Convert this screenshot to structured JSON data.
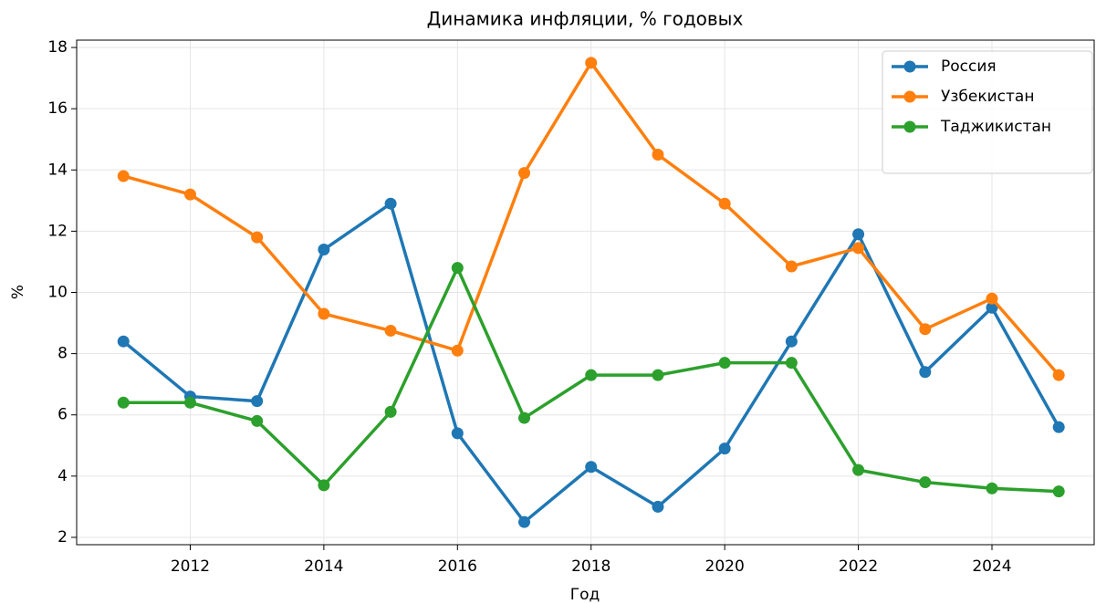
{
  "chart_data": {
    "type": "line",
    "title": "Динамика инфляции, % годовых",
    "xlabel": "Год",
    "ylabel": "%",
    "x": [
      2011,
      2012,
      2013,
      2014,
      2015,
      2016,
      2017,
      2018,
      2019,
      2020,
      2021,
      2022,
      2023,
      2024,
      2025
    ],
    "series": [
      {
        "name": "Россия",
        "color": "#1f77b4",
        "values": [
          8.4,
          6.6,
          6.45,
          11.4,
          12.9,
          5.4,
          2.5,
          4.3,
          3.0,
          4.9,
          8.4,
          11.9,
          7.4,
          9.5,
          5.6
        ]
      },
      {
        "name": "Узбекистан",
        "color": "#ff7f0e",
        "values": [
          13.8,
          13.2,
          11.8,
          9.3,
          8.75,
          8.1,
          13.9,
          17.5,
          14.5,
          12.9,
          10.85,
          11.45,
          8.8,
          9.8,
          7.3
        ]
      },
      {
        "name": "Таджикистан",
        "color": "#2ca02c",
        "values": [
          6.4,
          6.4,
          5.8,
          3.7,
          6.1,
          10.8,
          5.9,
          7.3,
          7.3,
          7.7,
          7.7,
          4.2,
          3.8,
          3.6,
          3.5
        ]
      }
    ],
    "xlim": [
      2010.3,
      2025.53
    ],
    "xticks": [
      2012,
      2014,
      2016,
      2018,
      2020,
      2022,
      2024
    ],
    "ylim": [
      1.76,
      18.24
    ],
    "yticks": [
      2,
      4,
      6,
      8,
      10,
      12,
      14,
      16,
      18
    ],
    "grid": true,
    "legend": "upper right"
  }
}
